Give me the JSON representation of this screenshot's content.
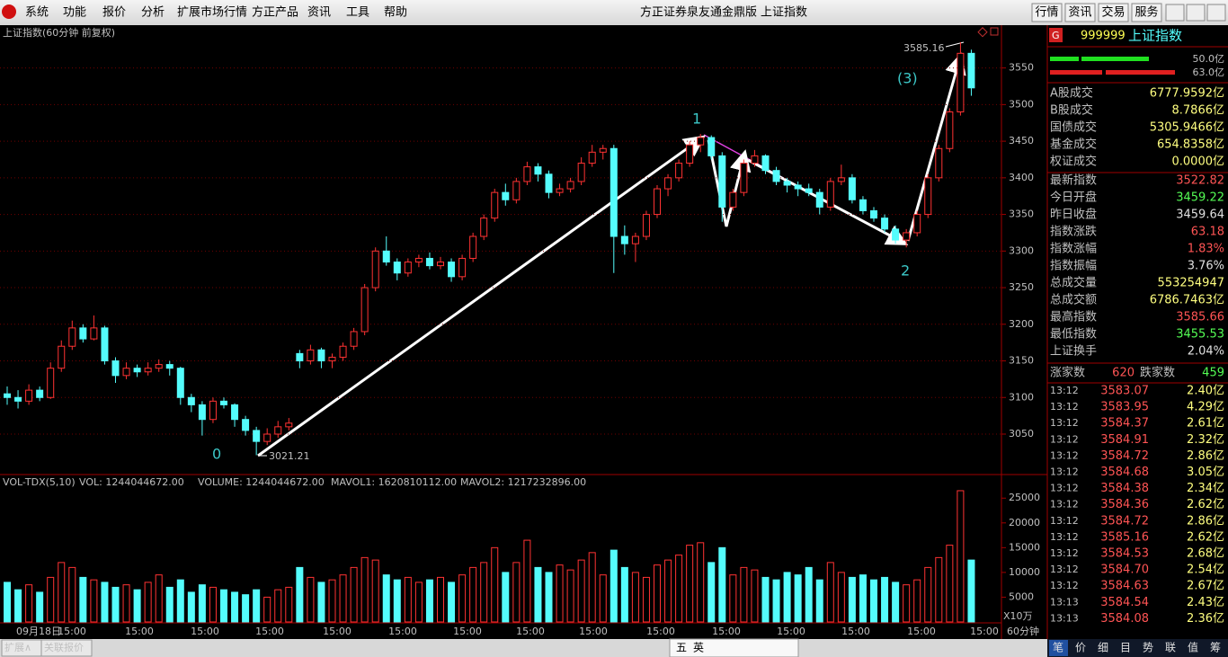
{
  "menu": {
    "items": [
      "系统",
      "功能",
      "报价",
      "分析",
      "扩展市场行情",
      "方正产品",
      "资讯",
      "工具",
      "帮助"
    ],
    "promo": [
      "方正证券泉友通金鼎版",
      "上证指数"
    ],
    "buttons": [
      "行情",
      "资讯",
      "交易",
      "服务"
    ]
  },
  "chart_data": {
    "type": "candlestick",
    "title": "上证指数(60分钟 前复权)",
    "up_color": "#ff3232",
    "down_color": "#54fcfc",
    "ylim": [
      2996,
      3606
    ],
    "yticks": [
      3050,
      3100,
      3150,
      3200,
      3250,
      3300,
      3350,
      3400,
      3450,
      3500,
      3550
    ],
    "candles": [
      [
        3105,
        3115,
        3090,
        3100
      ],
      [
        3100,
        3110,
        3085,
        3095
      ],
      [
        3095,
        3118,
        3090,
        3110
      ],
      [
        3110,
        3115,
        3095,
        3100
      ],
      [
        3100,
        3148,
        3098,
        3140
      ],
      [
        3140,
        3178,
        3135,
        3170
      ],
      [
        3170,
        3205,
        3165,
        3195
      ],
      [
        3195,
        3200,
        3175,
        3180
      ],
      [
        3180,
        3212,
        3178,
        3195
      ],
      [
        3195,
        3198,
        3145,
        3150
      ],
      [
        3150,
        3155,
        3120,
        3130
      ],
      [
        3130,
        3148,
        3125,
        3140
      ],
      [
        3140,
        3145,
        3128,
        3135
      ],
      [
        3135,
        3148,
        3130,
        3140
      ],
      [
        3140,
        3152,
        3135,
        3145
      ],
      [
        3145,
        3150,
        3130,
        3140
      ],
      [
        3140,
        3142,
        3090,
        3100
      ],
      [
        3100,
        3105,
        3080,
        3090
      ],
      [
        3090,
        3095,
        3048,
        3070
      ],
      [
        3070,
        3100,
        3065,
        3095
      ],
      [
        3095,
        3100,
        3085,
        3090
      ],
      [
        3090,
        3092,
        3060,
        3070
      ],
      [
        3070,
        3075,
        3048,
        3055
      ],
      [
        3055,
        3060,
        3021.21,
        3040
      ],
      [
        3040,
        3058,
        3035,
        3050
      ],
      [
        3050,
        3068,
        3045,
        3060
      ],
      [
        3060,
        3072,
        3055,
        3065
      ],
      [
        3160,
        3165,
        3140,
        3150
      ],
      [
        3150,
        3172,
        3145,
        3165
      ],
      [
        3165,
        3168,
        3140,
        3150
      ],
      [
        3150,
        3160,
        3140,
        3155
      ],
      [
        3155,
        3175,
        3150,
        3170
      ],
      [
        3170,
        3195,
        3165,
        3190
      ],
      [
        3190,
        3255,
        3185,
        3250
      ],
      [
        3250,
        3305,
        3245,
        3300
      ],
      [
        3300,
        3320,
        3280,
        3285
      ],
      [
        3285,
        3290,
        3260,
        3270
      ],
      [
        3270,
        3290,
        3265,
        3285
      ],
      [
        3285,
        3295,
        3278,
        3290
      ],
      [
        3290,
        3298,
        3275,
        3280
      ],
      [
        3280,
        3292,
        3275,
        3285
      ],
      [
        3285,
        3290,
        3258,
        3265
      ],
      [
        3265,
        3295,
        3260,
        3290
      ],
      [
        3290,
        3325,
        3285,
        3320
      ],
      [
        3320,
        3350,
        3315,
        3345
      ],
      [
        3345,
        3385,
        3340,
        3380
      ],
      [
        3380,
        3392,
        3362,
        3370
      ],
      [
        3370,
        3400,
        3365,
        3395
      ],
      [
        3395,
        3422,
        3390,
        3415
      ],
      [
        3415,
        3420,
        3395,
        3405
      ],
      [
        3405,
        3410,
        3372,
        3380
      ],
      [
        3380,
        3392,
        3375,
        3385
      ],
      [
        3385,
        3400,
        3380,
        3395
      ],
      [
        3395,
        3428,
        3390,
        3420
      ],
      [
        3420,
        3445,
        3415,
        3435
      ],
      [
        3435,
        3445,
        3425,
        3440
      ],
      [
        3440,
        3445,
        3270,
        3320
      ],
      [
        3320,
        3335,
        3295,
        3310
      ],
      [
        3310,
        3325,
        3285,
        3320
      ],
      [
        3320,
        3355,
        3315,
        3350
      ],
      [
        3350,
        3390,
        3345,
        3385
      ],
      [
        3385,
        3405,
        3375,
        3400
      ],
      [
        3400,
        3425,
        3395,
        3420
      ],
      [
        3420,
        3450,
        3415,
        3445
      ],
      [
        3445,
        3460,
        3435,
        3455
      ],
      [
        3455,
        3458,
        3425,
        3430
      ],
      [
        3430,
        3435,
        3340,
        3360
      ],
      [
        3360,
        3385,
        3355,
        3380
      ],
      [
        3380,
        3425,
        3375,
        3420
      ],
      [
        3420,
        3438,
        3415,
        3430
      ],
      [
        3430,
        3432,
        3405,
        3410
      ],
      [
        3410,
        3415,
        3390,
        3395
      ],
      [
        3395,
        3400,
        3380,
        3390
      ],
      [
        3390,
        3395,
        3375,
        3385
      ],
      [
        3385,
        3392,
        3375,
        3380
      ],
      [
        3380,
        3385,
        3350,
        3360
      ],
      [
        3360,
        3400,
        3355,
        3395
      ],
      [
        3395,
        3418,
        3390,
        3400
      ],
      [
        3400,
        3405,
        3365,
        3370
      ],
      [
        3370,
        3375,
        3350,
        3355
      ],
      [
        3355,
        3360,
        3340,
        3345
      ],
      [
        3345,
        3350,
        3325,
        3330
      ],
      [
        3330,
        3335,
        3310,
        3315
      ],
      [
        3315,
        3330,
        3305,
        3325
      ],
      [
        3325,
        3355,
        3320,
        3350
      ],
      [
        3350,
        3405,
        3345,
        3400
      ],
      [
        3400,
        3445,
        3395,
        3440
      ],
      [
        3440,
        3495,
        3435,
        3490
      ],
      [
        3490,
        3585.16,
        3485,
        3570
      ],
      [
        3570,
        3575,
        3512,
        3522.82
      ]
    ],
    "annotations": {
      "wave0": "0",
      "wave1": "1",
      "wave2": "2",
      "wave3": "(3)",
      "low": 3021.21,
      "high": 3585.16
    },
    "x_labels": [
      "09月18日",
      "15:00",
      "15:00",
      "15:00",
      "15:00",
      "15:00",
      "15:00",
      "15:00",
      "15:00",
      "15:00",
      "15:00",
      "15:00",
      "15:00",
      "15:00",
      "15:00",
      "15:00"
    ],
    "period": "60分钟",
    "volume": {
      "header": [
        "VOL-TDX(5,10)",
        "VOL: 1244044672.00",
        "VOLUME: 1244044672.00",
        "MAVOL1: 1620810112.00",
        "MAVOL2: 1217232896.00"
      ],
      "unit": "X10万",
      "ylim": [
        0,
        29400
      ],
      "yticks": [
        5000,
        10000,
        15000,
        20000,
        25000
      ],
      "values": [
        8000,
        6500,
        7500,
        6000,
        9000,
        12000,
        11000,
        9000,
        8500,
        8000,
        7000,
        7500,
        6500,
        8000,
        9500,
        7000,
        8500,
        6000,
        7500,
        7000,
        6500,
        6000,
        5500,
        6500,
        5000,
        6500,
        7000,
        11000,
        9000,
        8000,
        8500,
        9500,
        11000,
        13000,
        12500,
        9500,
        8500,
        9000,
        8000,
        8500,
        9000,
        8000,
        9500,
        11000,
        12000,
        15000,
        10000,
        12000,
        16500,
        11000,
        10000,
        11500,
        10500,
        12500,
        14000,
        9500,
        14500,
        11000,
        10000,
        9000,
        11500,
        12500,
        13500,
        15500,
        16000,
        12000,
        15000,
        9500,
        11000,
        10500,
        9000,
        8500,
        10000,
        9500,
        11000,
        8500,
        12000,
        10000,
        9000,
        9500,
        8500,
        9000,
        8000,
        7500,
        8500,
        11000,
        13000,
        15500,
        26500,
        12500
      ]
    }
  },
  "quote": {
    "badge": "G",
    "code": "999999",
    "name": "上证指数",
    "buy_bar": "50.0亿",
    "sell_bar": "63.0亿",
    "stats": [
      [
        "A股成交",
        "6777.9592亿"
      ],
      [
        "B股成交",
        "8.7866亿"
      ],
      [
        "国债成交",
        "5305.9466亿"
      ],
      [
        "基金成交",
        "654.8358亿"
      ],
      [
        "权证成交",
        "0.0000亿"
      ],
      [
        "最新指数",
        "3522.82"
      ],
      [
        "今日开盘",
        "3459.22"
      ],
      [
        "昨日收盘",
        "3459.64"
      ],
      [
        "指数涨跌",
        "63.18"
      ],
      [
        "指数涨幅",
        "1.83%"
      ],
      [
        "指数振幅",
        "3.76%"
      ],
      [
        "总成交量",
        "553254947"
      ],
      [
        "总成交额",
        "6786.7463亿"
      ],
      [
        "最高指数",
        "3585.66"
      ],
      [
        "最低指数",
        "3455.53"
      ],
      [
        "上证换手",
        "2.04%"
      ]
    ],
    "breadth": {
      "up_label": "涨家数",
      "up": 620,
      "down_label": "跌家数",
      "down": 459
    },
    "ticks": [
      [
        "13:12",
        "3583.07",
        "2.40亿"
      ],
      [
        "13:12",
        "3583.95",
        "4.29亿"
      ],
      [
        "13:12",
        "3584.37",
        "2.61亿"
      ],
      [
        "13:12",
        "3584.91",
        "2.32亿"
      ],
      [
        "13:12",
        "3584.72",
        "2.86亿"
      ],
      [
        "13:12",
        "3584.68",
        "3.05亿"
      ],
      [
        "13:12",
        "3584.38",
        "2.34亿"
      ],
      [
        "13:12",
        "3584.36",
        "2.62亿"
      ],
      [
        "13:12",
        "3584.72",
        "2.86亿"
      ],
      [
        "13:12",
        "3585.16",
        "2.62亿"
      ],
      [
        "13:12",
        "3584.53",
        "2.68亿"
      ],
      [
        "13:12",
        "3584.70",
        "2.54亿"
      ],
      [
        "13:12",
        "3584.63",
        "2.67亿"
      ],
      [
        "13:13",
        "3584.54",
        "2.43亿"
      ],
      [
        "13:13",
        "3584.08",
        "2.36亿"
      ]
    ],
    "tabs": [
      "笔",
      "价",
      "细",
      "目",
      "势",
      "联",
      "值",
      "筹"
    ]
  },
  "bottom": {
    "tabs": [
      "扩展∧",
      "关联报价"
    ],
    "ime": [
      "五",
      "英"
    ]
  }
}
